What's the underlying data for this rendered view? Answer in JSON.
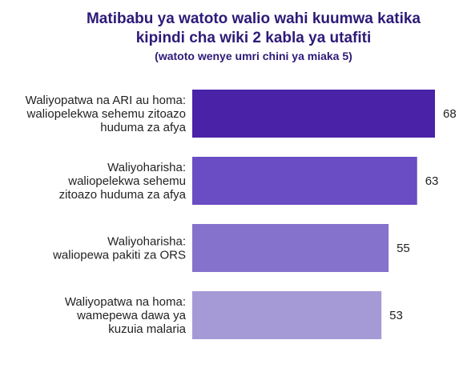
{
  "chart_data": {
    "type": "bar",
    "orientation": "horizontal",
    "title_lines": [
      "Matibabu ya watoto walio wahi kuumwa katika",
      "kipindi cha wiki 2 kabla ya utafiti"
    ],
    "subtitle": "(watoto wenye umri chini ya miaka 5)",
    "categories": [
      [
        "Waliyopatwa na ARI au homa:",
        "waliopelekwa sehemu zitoazo",
        "huduma za afya"
      ],
      [
        "Waliyoharisha:",
        "waliopelekwa sehemu",
        "zitoazo huduma za afya"
      ],
      [
        "Waliyoharisha:",
        "waliopewa pakiti za ORS"
      ],
      [
        "Waliyopatwa na homa:",
        "wamepewa dawa ya",
        "kuzuia malaria"
      ]
    ],
    "values": [
      68,
      63,
      55,
      53
    ],
    "value_labels": [
      "68",
      "63",
      "55",
      "53"
    ],
    "bar_colors": [
      "#4a22a8",
      "#6a4cc4",
      "#8472cc",
      "#a69ad6"
    ],
    "xlim": [
      0,
      70
    ],
    "grid": false,
    "legend": "none"
  }
}
